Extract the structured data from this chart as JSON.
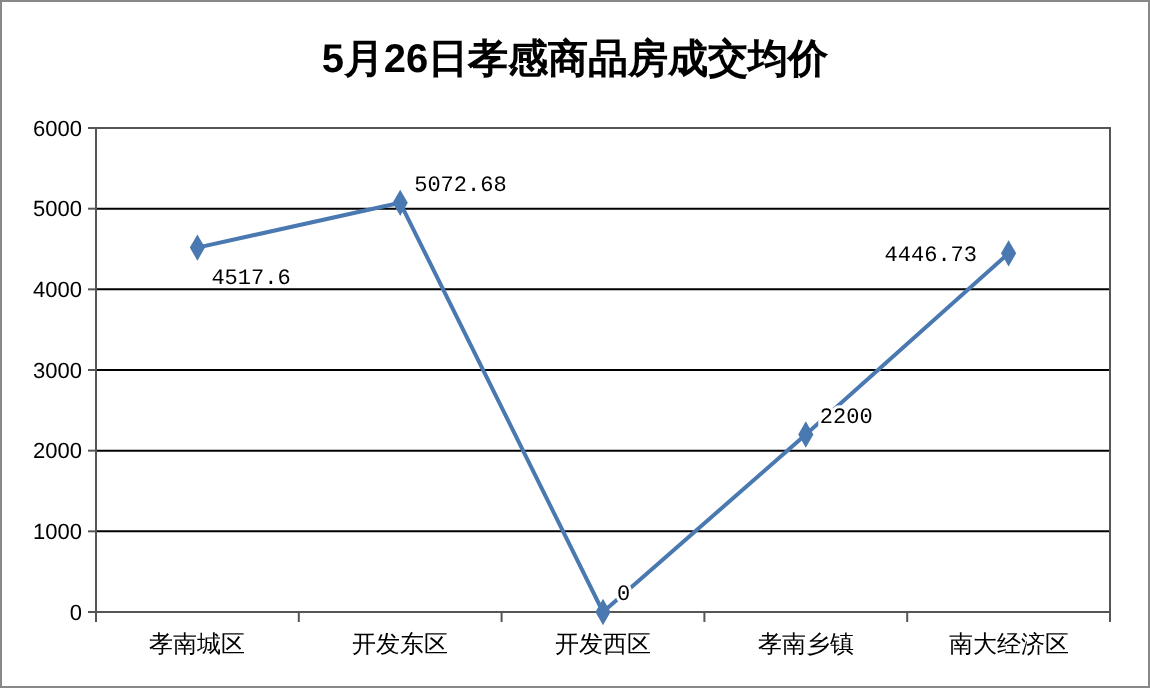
{
  "chart_data": {
    "type": "line",
    "title": "5月26日孝感商品房成交均价",
    "categories": [
      "孝南城区",
      "开发东区",
      "开发西区",
      "孝南乡镇",
      "南大经济区"
    ],
    "series": [
      {
        "color": "#4a78b0",
        "values": [
          4517.6,
          5072.68,
          0,
          2200,
          4446.73
        ]
      }
    ],
    "ylim": [
      0,
      6000
    ],
    "yticks": [
      0,
      1000,
      2000,
      3000,
      4000,
      5000,
      6000
    ],
    "grid": "y",
    "marker": "diamond",
    "line_style": "solid",
    "data_labels": true
  }
}
